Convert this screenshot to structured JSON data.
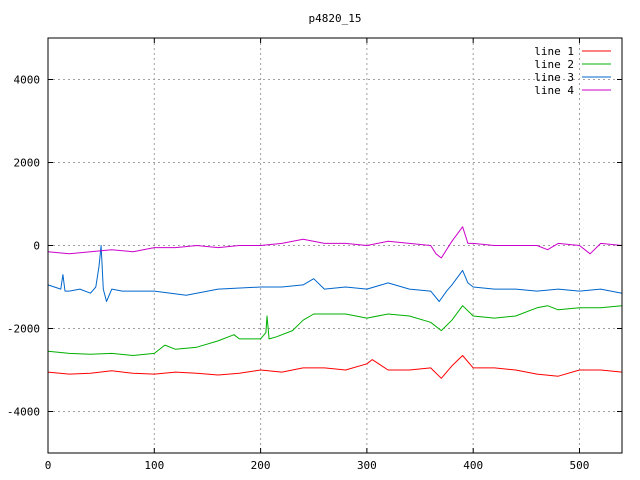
{
  "chart_data": {
    "type": "line",
    "title": "p4820_15",
    "xlabel": "",
    "ylabel": "",
    "xlim": [
      0,
      540
    ],
    "ylim": [
      -5000,
      5000
    ],
    "xticks": [
      0,
      100,
      200,
      300,
      400,
      500
    ],
    "yticks": [
      -4000,
      -2000,
      0,
      2000,
      4000
    ],
    "xtick_labels": [
      "0",
      "100",
      "200",
      "300",
      "400",
      "500"
    ],
    "ytick_labels": [
      "-4000",
      "-2000",
      "0",
      "2000",
      "4000"
    ],
    "grid": true,
    "legend_position": "top-right",
    "series": [
      {
        "name": "line 1",
        "color": "#ff0000",
        "x": [
          0,
          20,
          40,
          60,
          80,
          100,
          120,
          140,
          160,
          180,
          200,
          220,
          240,
          260,
          280,
          300,
          305,
          320,
          340,
          360,
          370,
          380,
          390,
          400,
          420,
          440,
          460,
          480,
          500,
          520,
          540
        ],
        "y": [
          -3050,
          -3100,
          -3080,
          -3020,
          -3080,
          -3100,
          -3050,
          -3080,
          -3120,
          -3080,
          -3000,
          -3050,
          -2950,
          -2950,
          -3000,
          -2850,
          -2750,
          -3000,
          -3000,
          -2950,
          -3200,
          -2900,
          -2650,
          -2950,
          -2950,
          -3000,
          -3100,
          -3150,
          -3000,
          -3000,
          -3050
        ]
      },
      {
        "name": "line 2",
        "color": "#00b000",
        "x": [
          0,
          20,
          40,
          60,
          80,
          100,
          110,
          120,
          140,
          160,
          175,
          180,
          200,
          205,
          206,
          208,
          215,
          230,
          240,
          250,
          260,
          280,
          300,
          320,
          340,
          360,
          370,
          380,
          390,
          400,
          420,
          440,
          460,
          470,
          480,
          500,
          520,
          540
        ],
        "y": [
          -2550,
          -2600,
          -2620,
          -2600,
          -2650,
          -2600,
          -2400,
          -2500,
          -2450,
          -2300,
          -2150,
          -2250,
          -2250,
          -2100,
          -1700,
          -2250,
          -2200,
          -2050,
          -1800,
          -1650,
          -1650,
          -1650,
          -1750,
          -1650,
          -1700,
          -1850,
          -2050,
          -1800,
          -1450,
          -1700,
          -1750,
          -1700,
          -1500,
          -1450,
          -1550,
          -1500,
          -1500,
          -1450
        ]
      },
      {
        "name": "line 3",
        "color": "#0066cc",
        "x": [
          0,
          12,
          14,
          16,
          20,
          30,
          40,
          45,
          48,
          50,
          52,
          55,
          60,
          70,
          80,
          100,
          130,
          160,
          200,
          220,
          240,
          250,
          260,
          280,
          300,
          320,
          340,
          360,
          368,
          375,
          380,
          390,
          395,
          400,
          420,
          440,
          460,
          480,
          500,
          520,
          540
        ],
        "y": [
          -950,
          -1050,
          -700,
          -1100,
          -1100,
          -1050,
          -1150,
          -1000,
          -500,
          0,
          -1050,
          -1350,
          -1050,
          -1100,
          -1100,
          -1100,
          -1200,
          -1050,
          -1000,
          -1000,
          -950,
          -800,
          -1050,
          -1000,
          -1050,
          -900,
          -1050,
          -1100,
          -1350,
          -1100,
          -950,
          -600,
          -900,
          -1000,
          -1050,
          -1050,
          -1100,
          -1050,
          -1100,
          -1050,
          -1150
        ]
      },
      {
        "name": "line 4",
        "color": "#cc00cc",
        "x": [
          0,
          20,
          40,
          60,
          80,
          100,
          120,
          140,
          160,
          180,
          200,
          220,
          240,
          260,
          280,
          300,
          320,
          340,
          360,
          365,
          370,
          380,
          390,
          395,
          400,
          420,
          440,
          460,
          470,
          480,
          500,
          510,
          520,
          540
        ],
        "y": [
          -150,
          -200,
          -150,
          -100,
          -150,
          -50,
          -50,
          0,
          -50,
          0,
          0,
          50,
          150,
          50,
          50,
          0,
          100,
          50,
          0,
          -200,
          -300,
          100,
          450,
          50,
          50,
          0,
          0,
          0,
          -100,
          50,
          0,
          -200,
          50,
          0
        ]
      }
    ]
  }
}
